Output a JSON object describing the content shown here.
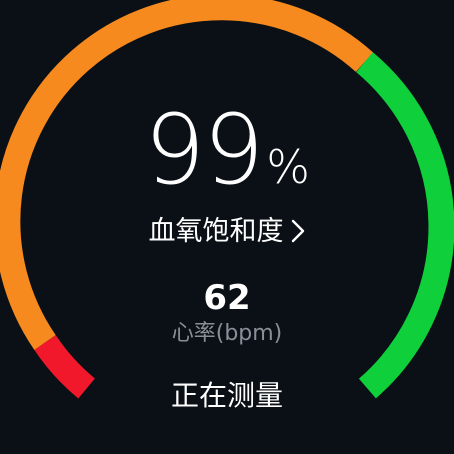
{
  "gauge": {
    "segments": [
      {
        "name": "low",
        "color": "#f0182a"
      },
      {
        "name": "mid",
        "color": "#f68a1e"
      },
      {
        "name": "high",
        "color": "#0fcf3a"
      }
    ]
  },
  "spo2": {
    "value": "99",
    "unit": "%",
    "label": "血氧饱和度"
  },
  "heart_rate": {
    "value": "62",
    "label": "心率(bpm)"
  },
  "status": "正在测量",
  "icons": {
    "metric_chevron": "chevron-right-icon"
  }
}
